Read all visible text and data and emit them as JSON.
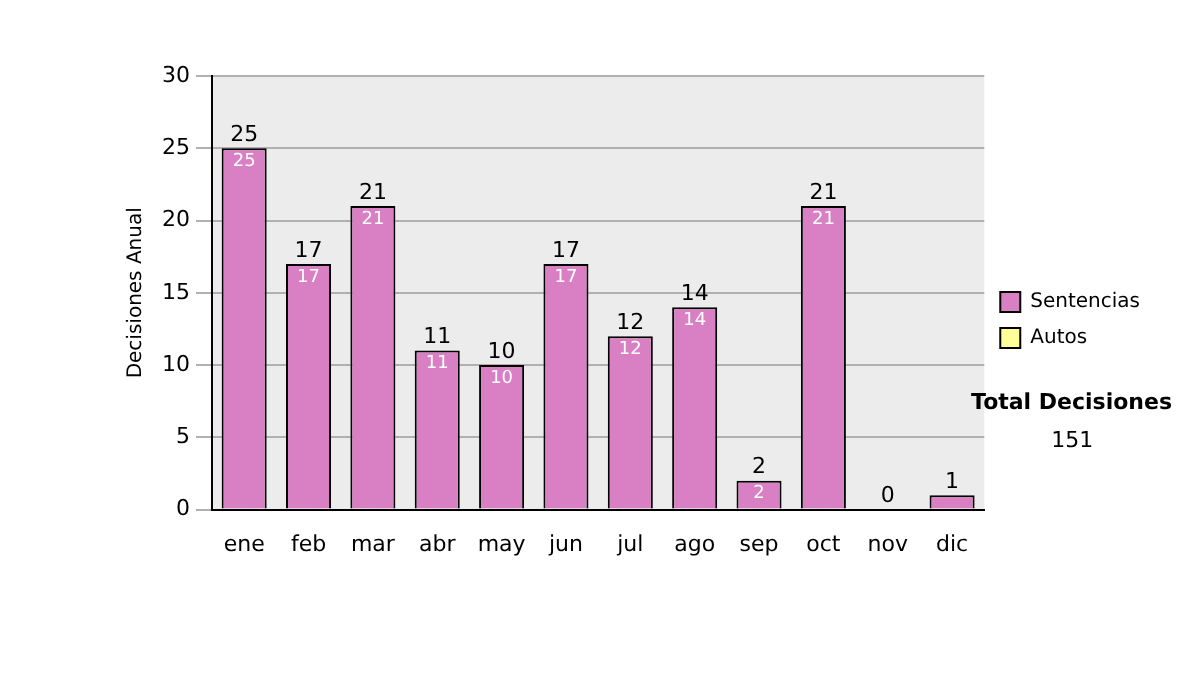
{
  "chart_data": {
    "type": "bar",
    "ylabel": "Decisiones Anual",
    "categories": [
      "ene",
      "feb",
      "mar",
      "abr",
      "may",
      "jun",
      "jul",
      "ago",
      "sep",
      "oct",
      "nov",
      "dic"
    ],
    "series": [
      {
        "name": "Sentencias",
        "color": "#d97fc4",
        "values": [
          25,
          17,
          21,
          11,
          10,
          17,
          12,
          14,
          2,
          21,
          0,
          1
        ],
        "value_labels": [
          "25",
          "17",
          "21",
          "11",
          "10",
          "17",
          "12",
          "14",
          "2",
          "21",
          null,
          null
        ]
      },
      {
        "name": "Autos",
        "color": "#ffff99",
        "values": [
          0,
          0,
          0,
          0,
          0,
          0,
          0,
          0,
          0,
          0,
          0,
          0
        ]
      }
    ],
    "stacked": true,
    "totals": [
      "25",
      "17",
      "21",
      "11",
      "10",
      "17",
      "12",
      "14",
      "2",
      "21",
      "0",
      "1"
    ],
    "ylim": [
      0,
      30
    ],
    "yticks": [
      0,
      5,
      10,
      15,
      20,
      25,
      30
    ],
    "grid": "y",
    "legend": "right",
    "annotations": [
      "Total Decisiones",
      "151"
    ]
  }
}
